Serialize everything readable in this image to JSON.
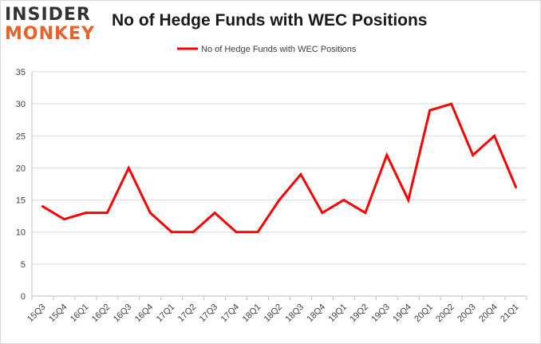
{
  "logo": {
    "line1": "INSIDER",
    "line2": "MONKEY"
  },
  "chart_data": {
    "type": "line",
    "title": "No of Hedge Funds with WEC Positions",
    "xlabel": "",
    "ylabel": "",
    "categories": [
      "15Q3",
      "15Q4",
      "16Q1",
      "16Q2",
      "16Q3",
      "16Q4",
      "17Q1",
      "17Q2",
      "17Q3",
      "17Q4",
      "18Q1",
      "18Q2",
      "18Q3",
      "18Q4",
      "19Q1",
      "19Q2",
      "19Q3",
      "19Q4",
      "20Q1",
      "20Q2",
      "20Q3",
      "20Q4",
      "21Q1"
    ],
    "series": [
      {
        "name": "No of Hedge Funds with WEC Positions",
        "color": "#ff0000",
        "values": [
          14,
          12,
          13,
          13,
          20,
          13,
          10,
          10,
          13,
          10,
          10,
          15,
          19,
          13,
          15,
          13,
          22,
          15,
          29,
          30,
          22,
          25,
          17
        ]
      }
    ],
    "ylim": [
      0,
      35
    ],
    "yticks": [
      0,
      5,
      10,
      15,
      20,
      25,
      30,
      35
    ],
    "grid": true,
    "legend_position": "top-center"
  },
  "colors": {
    "grid": "#d9d9d9",
    "axis": "#bfbfbf",
    "line": "#ff0000"
  }
}
